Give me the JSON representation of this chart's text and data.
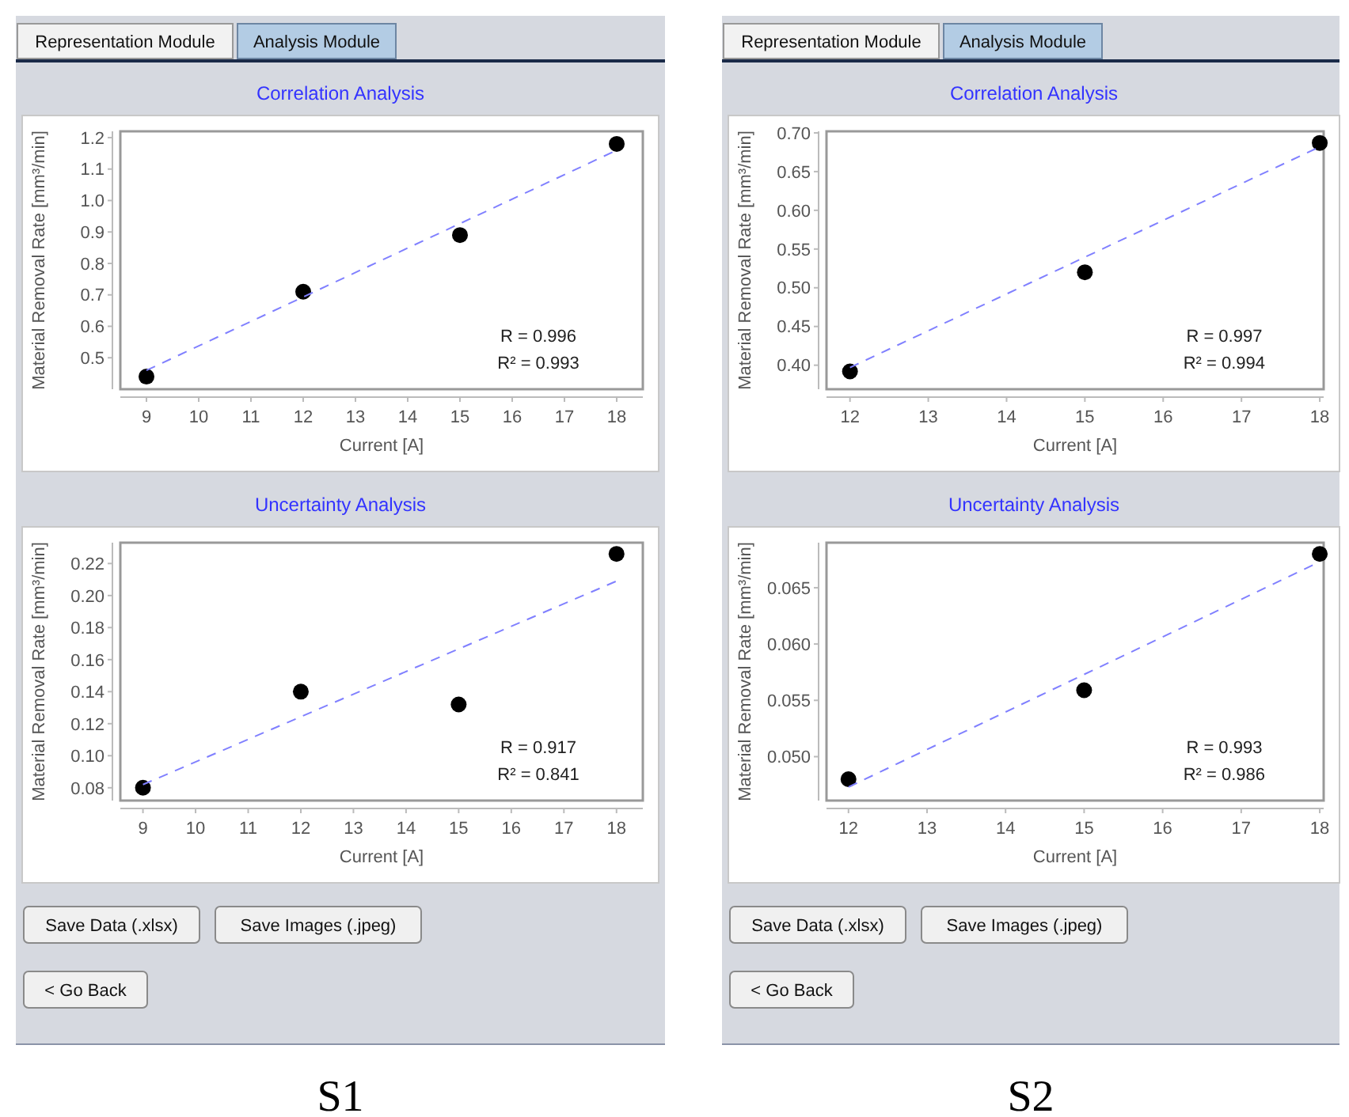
{
  "chart_data": [
    {
      "type": "scatter",
      "title": "Correlation Analysis",
      "xlabel": "Current [A]",
      "ylabel": "Material Removal Rate [mm³/min]",
      "xlim": [
        8.5,
        18.5
      ],
      "xticks": [
        9,
        10,
        11,
        12,
        13,
        14,
        15,
        16,
        17,
        18
      ],
      "ylim": [
        0.4,
        1.22
      ],
      "yticks": [
        0.5,
        0.6,
        0.7,
        0.8,
        0.9,
        {
          "value": 1,
          "label": "1.0"
        },
        1.1,
        1.2
      ],
      "annotations": [
        "R = 0.996",
        "R² = 0.993"
      ],
      "series": [
        {
          "type": "scatter",
          "marker": "circle",
          "color": "#000000",
          "x": [
            9,
            12,
            15,
            18
          ],
          "values": [
            0.44,
            0.71,
            0.89,
            1.18
          ]
        },
        {
          "type": "line",
          "color": "#8080ff",
          "line_style": "dashed",
          "x": [
            9,
            18
          ],
          "values": [
            0.46,
            1.16
          ]
        }
      ]
    },
    {
      "type": "scatter",
      "title": "Uncertainty Analysis",
      "xlabel": "Current [A]",
      "ylabel": "Material Removal Rate [mm³/min]",
      "xlim": [
        8.57,
        18.5
      ],
      "xticks": [
        9,
        10,
        11,
        12,
        13,
        14,
        15,
        16,
        17,
        18
      ],
      "ylim": [
        0.072,
        0.233
      ],
      "yticks": [
        0.08,
        {
          "value": 0.1,
          "label": "0.10"
        },
        0.12,
        0.14,
        0.16,
        0.18,
        {
          "value": 0.2,
          "label": "0.20"
        },
        0.22
      ],
      "annotations": [
        "R = 0.917",
        "R² = 0.841"
      ],
      "series": [
        {
          "type": "scatter",
          "marker": "circle",
          "color": "#000000",
          "x": [
            9,
            12,
            15,
            18
          ],
          "values": [
            0.08,
            0.14,
            0.132,
            0.226
          ]
        },
        {
          "type": "line",
          "color": "#8080ff",
          "line_style": "dashed",
          "x": [
            9,
            18
          ],
          "values": [
            0.082,
            0.209
          ]
        }
      ]
    },
    {
      "type": "scatter",
      "title": "Correlation Analysis",
      "xlabel": "Current [A]",
      "ylabel": "Material Removal Rate [mm³/min]",
      "xlim": [
        11.7,
        18.05
      ],
      "xticks": [
        12,
        13,
        14,
        15,
        16,
        17,
        18
      ],
      "ylim": [
        0.369,
        0.702
      ],
      "yticks": [
        {
          "value": 0.4,
          "label": "0.40"
        },
        0.45,
        {
          "value": 0.5,
          "label": "0.50"
        },
        0.55,
        {
          "value": 0.6,
          "label": "0.60"
        },
        0.65,
        {
          "value": 0.7,
          "label": "0.70"
        }
      ],
      "annotations": [
        "R = 0.997",
        "R² = 0.994"
      ],
      "series": [
        {
          "type": "scatter",
          "marker": "circle",
          "color": "#000000",
          "x": [
            12,
            15,
            18
          ],
          "values": [
            0.392,
            0.52,
            0.687
          ]
        },
        {
          "type": "line",
          "color": "#8080ff",
          "line_style": "dashed",
          "x": [
            12,
            18
          ],
          "values": [
            0.397,
            0.682
          ]
        }
      ]
    },
    {
      "type": "scatter",
      "title": "Uncertainty Analysis",
      "xlabel": "Current [A]",
      "ylabel": "Material Removal Rate [mm³/min]",
      "xlim": [
        11.72,
        18.05
      ],
      "xticks": [
        12,
        13,
        14,
        15,
        16,
        17,
        18
      ],
      "ylim": [
        0.0461,
        0.069
      ],
      "yticks": [
        {
          "value": 0.05,
          "label": "0.050"
        },
        0.055,
        {
          "value": 0.06,
          "label": "0.060"
        },
        0.065
      ],
      "annotations": [
        "R = 0.993",
        "R² = 0.986"
      ],
      "series": [
        {
          "type": "scatter",
          "marker": "circle",
          "color": "#000000",
          "x": [
            12,
            15,
            18
          ],
          "values": [
            0.048,
            0.0559,
            0.068
          ]
        },
        {
          "type": "line",
          "color": "#8080ff",
          "line_style": "dashed",
          "x": [
            12,
            18
          ],
          "values": [
            0.0473,
            0.0673
          ]
        }
      ]
    },
    {
      "type": "other",
      "title": "S1",
      "annotations": [
        "Representation Module",
        "Analysis Module",
        "Save Data (.xlsx)",
        "Save Images (.jpeg)",
        "< Go Back"
      ]
    },
    {
      "type": "other",
      "title": "S2",
      "annotations": [
        "Representation Module",
        "Analysis Module",
        "Save Data (.xlsx)",
        "Save Images (.jpeg)",
        "< Go Back"
      ]
    }
  ]
}
